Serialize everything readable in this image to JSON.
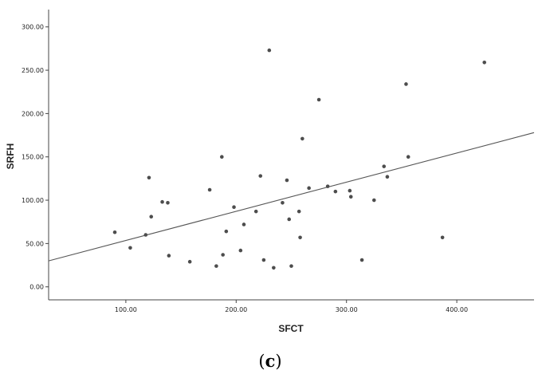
{
  "chart_data": {
    "type": "scatter",
    "xlabel": "SFCT",
    "ylabel": "SRFH",
    "caption": {
      "open": "(",
      "letter": "c",
      "close": ")"
    },
    "xlim": [
      30,
      470
    ],
    "ylim": [
      -15,
      320
    ],
    "x_ticks": [
      {
        "value": 100,
        "label": "100.00"
      },
      {
        "value": 200,
        "label": "200.00"
      },
      {
        "value": 300,
        "label": "300.00"
      },
      {
        "value": 400,
        "label": "400.00"
      }
    ],
    "y_ticks": [
      {
        "value": 0,
        "label": "0.00"
      },
      {
        "value": 50,
        "label": "50.00"
      },
      {
        "value": 100,
        "label": "100.00"
      },
      {
        "value": 150,
        "label": "150.00"
      },
      {
        "value": 200,
        "label": "200.00"
      },
      {
        "value": 250,
        "label": "250.00"
      },
      {
        "value": 300,
        "label": "300.00"
      }
    ],
    "points": [
      [
        90,
        63
      ],
      [
        104,
        45
      ],
      [
        118,
        60
      ],
      [
        121,
        126
      ],
      [
        123,
        81
      ],
      [
        133,
        98
      ],
      [
        138,
        97
      ],
      [
        139,
        36
      ],
      [
        158,
        29
      ],
      [
        176,
        112
      ],
      [
        182,
        24
      ],
      [
        187,
        150
      ],
      [
        188,
        37
      ],
      [
        191,
        64
      ],
      [
        198,
        92
      ],
      [
        204,
        42
      ],
      [
        207,
        72
      ],
      [
        218,
        87
      ],
      [
        222,
        128
      ],
      [
        225,
        31
      ],
      [
        230,
        273
      ],
      [
        234,
        22
      ],
      [
        242,
        97
      ],
      [
        246,
        123
      ],
      [
        248,
        78
      ],
      [
        250,
        24
      ],
      [
        257,
        87
      ],
      [
        258,
        57
      ],
      [
        260,
        171
      ],
      [
        266,
        114
      ],
      [
        275,
        216
      ],
      [
        283,
        116
      ],
      [
        290,
        110
      ],
      [
        303,
        111
      ],
      [
        304,
        104
      ],
      [
        314,
        31
      ],
      [
        325,
        100
      ],
      [
        334,
        139
      ],
      [
        337,
        127
      ],
      [
        354,
        234
      ],
      [
        356,
        150
      ],
      [
        387,
        57
      ],
      [
        425,
        259
      ]
    ],
    "fit_line": {
      "x": [
        30,
        470
      ],
      "y": [
        30,
        178
      ]
    },
    "grid": false,
    "colors": {
      "point": "#4d4d4d",
      "line": "#555555",
      "axis": "#444444"
    }
  }
}
